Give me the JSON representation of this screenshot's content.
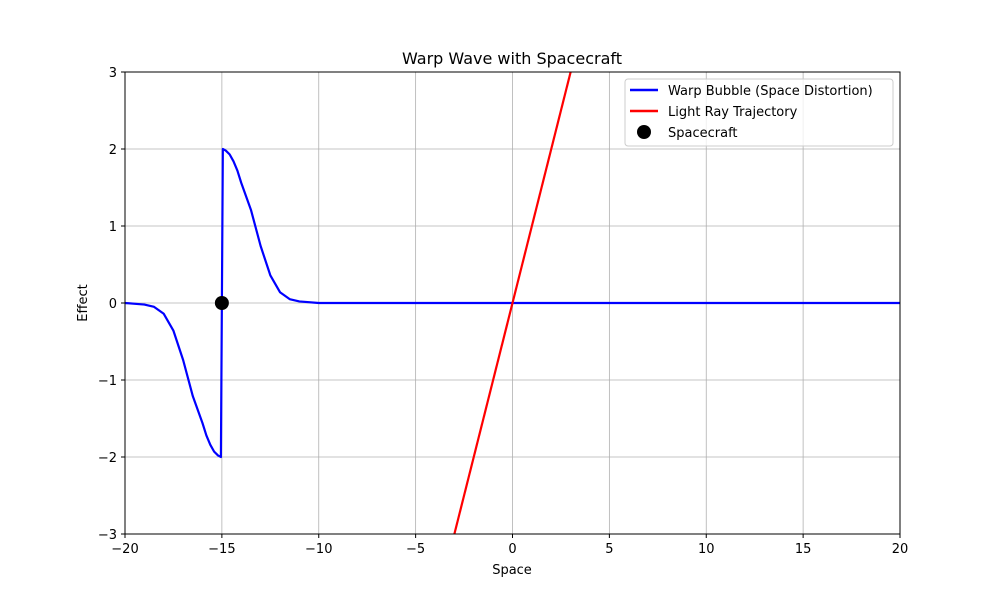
{
  "chart_data": {
    "type": "line",
    "title": "Warp Wave with Spacecraft",
    "xlabel": "Space",
    "ylabel": "Effect",
    "xlim": [
      -20,
      20
    ],
    "ylim": [
      -3,
      3
    ],
    "grid": true,
    "legend_position": "top-right",
    "x_ticks": [
      -20,
      -15,
      -10,
      -5,
      0,
      5,
      10,
      15,
      20
    ],
    "x_tick_labels": [
      "−20",
      "−15",
      "−10",
      "−5",
      "0",
      "5",
      "10",
      "15",
      "20"
    ],
    "y_ticks": [
      -3,
      -2,
      -1,
      0,
      1,
      2,
      3
    ],
    "y_tick_labels": [
      "−3",
      "−2",
      "−1",
      "0",
      "1",
      "2",
      "3"
    ],
    "series": [
      {
        "name": "Warp Bubble (Space Distortion)",
        "kind": "line",
        "color": "#0000ff",
        "x": [
          -20,
          -19,
          -18.5,
          -18,
          -17.5,
          -17,
          -16.5,
          -16,
          -15.8,
          -15.6,
          -15.4,
          -15.2,
          -15.05,
          -15.0,
          -14.95,
          -14.8,
          -14.6,
          -14.4,
          -14.2,
          -14,
          -13.5,
          -13,
          -12.5,
          -12,
          -11.5,
          -11,
          -10,
          20
        ],
        "y": [
          0,
          -0.02,
          -0.05,
          -0.14,
          -0.36,
          -0.74,
          -1.21,
          -1.56,
          -1.72,
          -1.84,
          -1.93,
          -1.98,
          -2.0,
          0,
          2.0,
          1.98,
          1.93,
          1.84,
          1.72,
          1.56,
          1.21,
          0.74,
          0.36,
          0.14,
          0.05,
          0.02,
          0,
          0
        ]
      },
      {
        "name": "Light Ray Trajectory",
        "kind": "line",
        "color": "#ff0000",
        "x": [
          -3,
          3
        ],
        "y": [
          -3,
          3
        ]
      },
      {
        "name": "Spacecraft",
        "kind": "scatter",
        "color": "#000000",
        "x": [
          -15
        ],
        "y": [
          0
        ]
      }
    ]
  }
}
